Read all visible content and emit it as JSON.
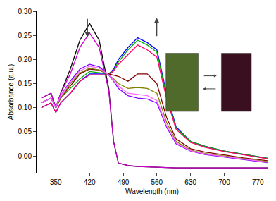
{
  "chart_data": {
    "type": "line",
    "x_label": "Wavelength (nm)",
    "y_label": "Absorbance (a.u.)",
    "x": [
      320,
      340,
      350,
      360,
      380,
      400,
      420,
      440,
      460,
      470,
      480,
      500,
      520,
      540,
      560,
      580,
      600,
      630,
      660,
      700,
      740,
      790
    ],
    "series": [
      {
        "color": "#000000",
        "values": [
          0.12,
          0.13,
          0.1,
          0.13,
          0.18,
          0.24,
          0.275,
          0.24,
          0.14,
          0.03,
          -0.015,
          -0.02,
          -0.022,
          -0.023,
          -0.024,
          -0.025,
          -0.025,
          -0.025,
          -0.025,
          -0.025,
          -0.025,
          -0.025
        ]
      },
      {
        "color": "#cc00cc",
        "values": [
          0.12,
          0.13,
          0.1,
          0.13,
          0.17,
          0.225,
          0.255,
          0.225,
          0.135,
          0.03,
          -0.015,
          -0.02,
          -0.022,
          -0.023,
          -0.024,
          -0.025,
          -0.025,
          -0.025,
          -0.025,
          -0.025,
          -0.025,
          -0.025
        ]
      },
      {
        "color": "#0000ff",
        "values": [
          0.1,
          0.11,
          0.09,
          0.11,
          0.13,
          0.155,
          0.17,
          0.17,
          0.17,
          0.18,
          0.2,
          0.225,
          0.245,
          0.235,
          0.22,
          0.13,
          0.06,
          0.03,
          0.02,
          0.01,
          0.003,
          -0.005
        ]
      },
      {
        "color": "#00aa00",
        "values": [
          0.11,
          0.12,
          0.1,
          0.12,
          0.14,
          0.16,
          0.175,
          0.172,
          0.17,
          0.178,
          0.195,
          0.22,
          0.24,
          0.23,
          0.215,
          0.125,
          0.058,
          0.03,
          0.02,
          0.01,
          0.003,
          -0.005
        ]
      },
      {
        "color": "#ff0066",
        "values": [
          0.1,
          0.11,
          0.09,
          0.11,
          0.13,
          0.155,
          0.168,
          0.168,
          0.168,
          0.176,
          0.19,
          0.21,
          0.23,
          0.22,
          0.205,
          0.12,
          0.055,
          0.028,
          0.018,
          0.009,
          0.002,
          -0.006
        ]
      },
      {
        "color": "#800000",
        "values": [
          0.11,
          0.12,
          0.1,
          0.12,
          0.145,
          0.17,
          0.18,
          0.178,
          0.17,
          0.168,
          0.165,
          0.155,
          0.17,
          0.17,
          0.15,
          0.08,
          0.035,
          0.015,
          0.008,
          0.002,
          -0.004,
          -0.01
        ]
      },
      {
        "color": "#808000",
        "values": [
          0.11,
          0.12,
          0.1,
          0.12,
          0.15,
          0.172,
          0.182,
          0.178,
          0.168,
          0.16,
          0.15,
          0.14,
          0.142,
          0.14,
          0.13,
          0.07,
          0.03,
          0.012,
          0.005,
          0.0,
          -0.005,
          -0.012
        ]
      },
      {
        "color": "#8000ff",
        "values": [
          0.11,
          0.12,
          0.1,
          0.125,
          0.155,
          0.18,
          0.19,
          0.185,
          0.168,
          0.155,
          0.14,
          0.125,
          0.12,
          0.118,
          0.11,
          0.06,
          0.025,
          0.01,
          0.003,
          -0.002,
          -0.007,
          -0.014
        ]
      },
      {
        "color": "#ff66ff",
        "values": [
          0.11,
          0.12,
          0.1,
          0.125,
          0.152,
          0.176,
          0.186,
          0.182,
          0.168,
          0.157,
          0.145,
          0.13,
          0.128,
          0.125,
          0.115,
          0.063,
          0.027,
          0.011,
          0.004,
          -0.001,
          -0.006,
          -0.013
        ]
      }
    ],
    "xlim": [
      310,
      790
    ],
    "xticks": [
      350,
      420,
      490,
      560,
      630,
      700,
      770
    ],
    "ylim": [
      -0.035,
      0.3
    ],
    "yticks": [
      {
        "value": 0,
        "label": "0.00"
      },
      {
        "value": 0.05,
        "label": "0.05"
      },
      {
        "value": 0.1,
        "label": "0.10"
      },
      {
        "value": 0.15,
        "label": "0.15"
      },
      {
        "value": 0.2,
        "label": "0.20"
      },
      {
        "value": 0.25,
        "label": "0.25"
      },
      {
        "value": 0.3,
        "label": "0.30"
      }
    ],
    "grid": false
  }
}
